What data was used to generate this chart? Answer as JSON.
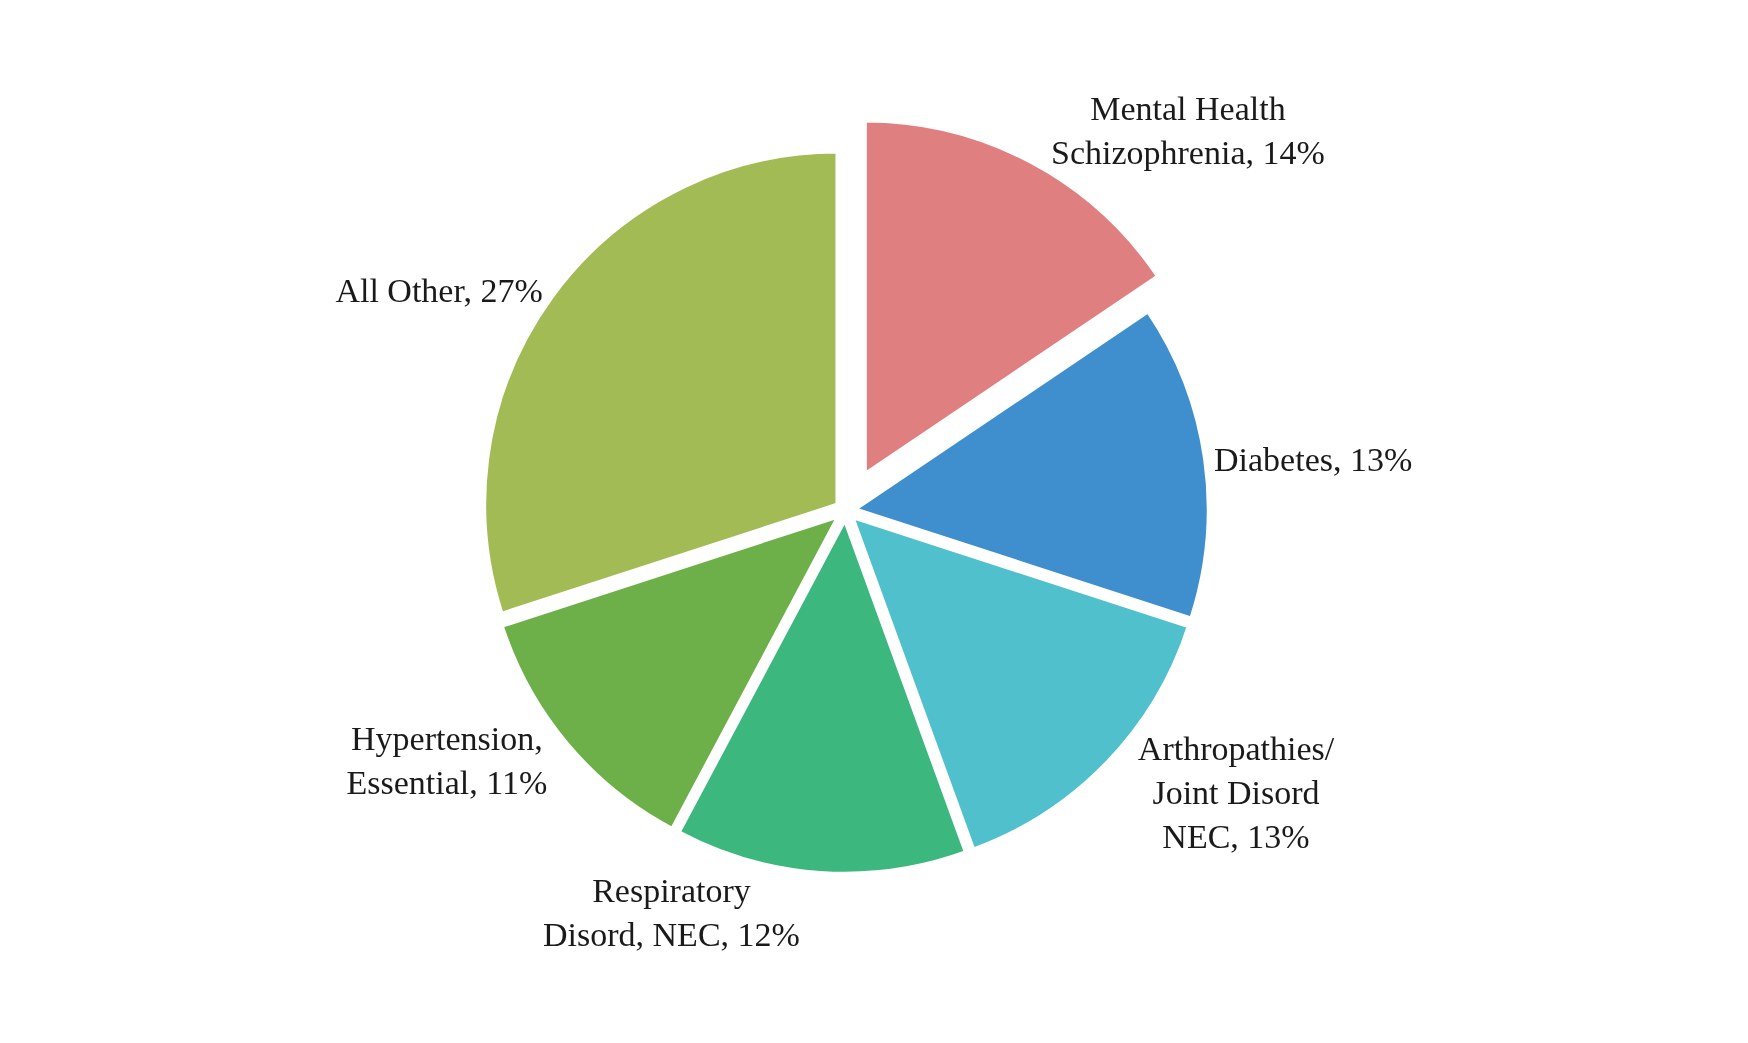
{
  "chart_data": {
    "type": "pie",
    "categories": [
      "Mental Health Schizophrenia",
      "Diabetes",
      "Arthropathies/ Joint Disord NEC",
      "Respiratory Disord, NEC",
      "Hypertension, Essential",
      "All Other"
    ],
    "values": [
      14,
      13,
      13,
      12,
      11,
      27
    ],
    "value_labels": [
      "14%",
      "13%",
      "13%",
      "12%",
      "11%",
      "27%"
    ],
    "colors": [
      "#e07f7f",
      "#3f8fcf",
      "#4fc0cc",
      "#3cb87f",
      "#6db04a",
      "#a3bb55"
    ],
    "legend": false
  }
}
